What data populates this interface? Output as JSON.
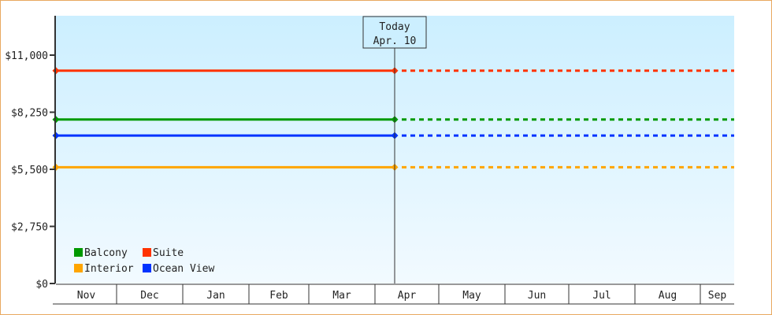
{
  "chart_data": {
    "type": "line",
    "title": "",
    "xlabel": "",
    "ylabel": "",
    "ylim": [
      0,
      12700
    ],
    "y_ticks": [
      "$0",
      "$2,750",
      "$5,500",
      "$8,250",
      "$11,000"
    ],
    "y_tick_values": [
      0,
      2750,
      5500,
      8250,
      11000
    ],
    "categories": [
      "Nov",
      "Dec",
      "Jan",
      "Feb",
      "Mar",
      "Apr",
      "May",
      "Jun",
      "Jul",
      "Aug",
      "Sep"
    ],
    "today": {
      "label": "Today",
      "date": "Apr. 10"
    },
    "legend_position": "bottom-left",
    "grid": false,
    "series": [
      {
        "name": "Balcony",
        "color": "#009900",
        "value": 7900
      },
      {
        "name": "Suite",
        "color": "#ff3300",
        "value": 10250
      },
      {
        "name": "Interior",
        "color": "#ffa500",
        "value": 5600
      },
      {
        "name": "Ocean View",
        "color": "#0033ff",
        "value": 7125
      }
    ],
    "note": ""
  }
}
